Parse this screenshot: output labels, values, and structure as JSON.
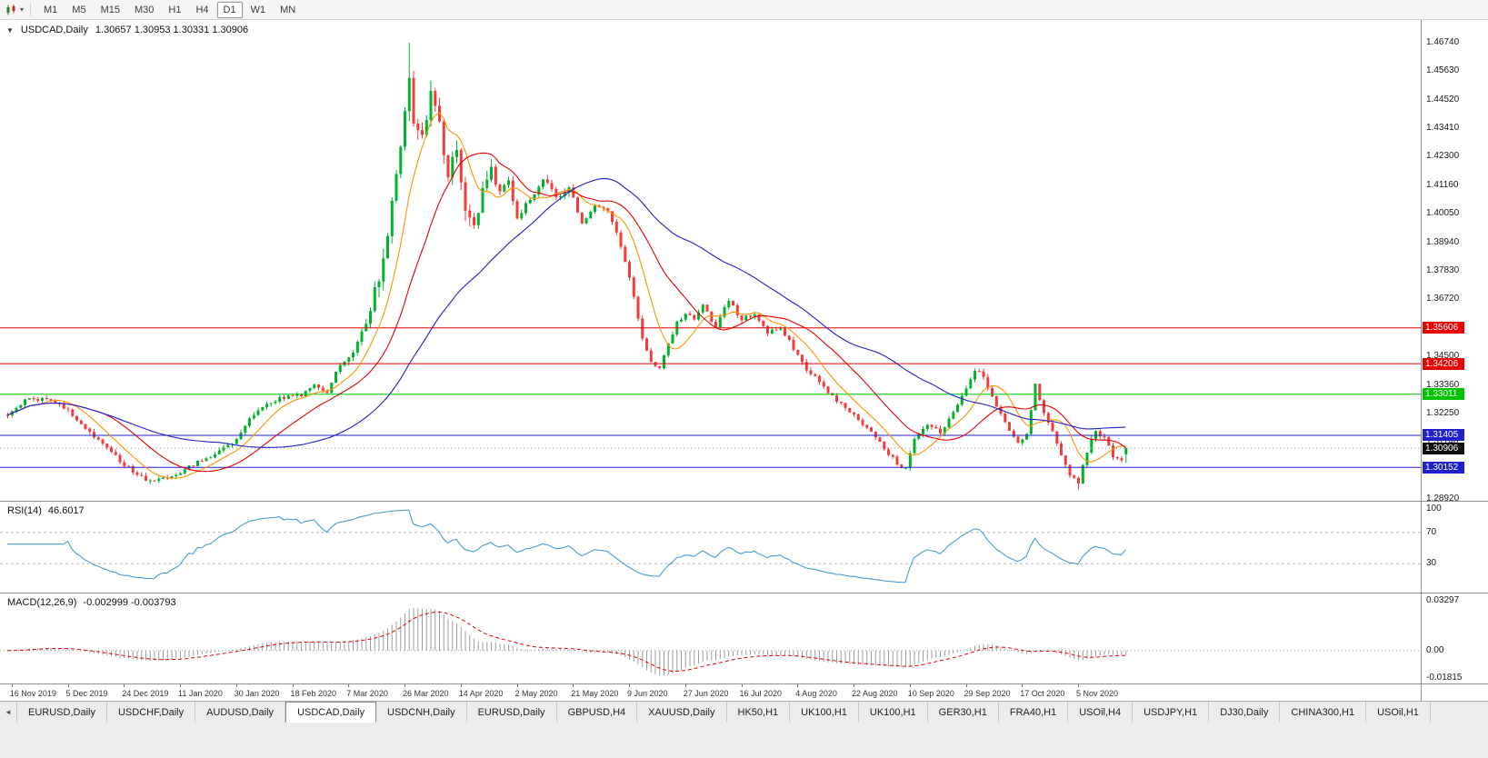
{
  "colors": {
    "bull": "#00b22c",
    "bear": "#f53a3a",
    "ma_fast": "#ff9400",
    "ma_mid": "#e60000",
    "ma_slow": "#2020cc",
    "rsi": "#4a9bd4",
    "macd_hist": "#9e9e9e",
    "macd_signal": "#e60000",
    "level_red": "#e60000",
    "level_green": "#00c400",
    "level_blue": "#2020cc",
    "tag_current": "#111111"
  },
  "toolbar": {
    "caret": "▾",
    "timeframes": [
      {
        "label": "M1",
        "active": false
      },
      {
        "label": "M5",
        "active": false
      },
      {
        "label": "M15",
        "active": false
      },
      {
        "label": "M30",
        "active": false
      },
      {
        "label": "H1",
        "active": false
      },
      {
        "label": "H4",
        "active": false
      },
      {
        "label": "D1",
        "active": true
      },
      {
        "label": "W1",
        "active": false
      },
      {
        "label": "MN",
        "active": false
      }
    ]
  },
  "chart": {
    "collapse_marker": "▼",
    "title": "USDCAD,Daily",
    "ohlc_text": "1.30657 1.30953 1.30331 1.30906",
    "y_axis_labels": [
      "1.46740",
      "1.45630",
      "1.44520",
      "1.43410",
      "1.42300",
      "1.41160",
      "1.40050",
      "1.38940",
      "1.37830",
      "1.36720",
      "1.35610",
      "1.34500",
      "1.33360",
      "1.32250",
      "1.31140",
      "1.30030",
      "1.28920"
    ],
    "price_tags": [
      {
        "price": 1.35606,
        "label": "1.35606",
        "color": "#e60000"
      },
      {
        "price": 1.34206,
        "label": "1.34206",
        "color": "#e60000"
      },
      {
        "price": 1.33011,
        "label": "1.33011",
        "color": "#00c400"
      },
      {
        "price": 1.31405,
        "label": "1.31405",
        "color": "#2020cc"
      },
      {
        "price": 1.30906,
        "label": "1.30906",
        "color": "#111111"
      },
      {
        "price": 1.30152,
        "label": "1.30152",
        "color": "#2020cc"
      }
    ],
    "x_axis_labels": [
      "16 Nov 2019",
      "5 Dec 2019",
      "24 Dec 2019",
      "11 Jan 2020",
      "30 Jan 2020",
      "18 Feb 2020",
      "7 Mar 2020",
      "26 Mar 2020",
      "14 Apr 2020",
      "2 May 2020",
      "21 May 2020",
      "9 Jun 2020",
      "27 Jun 2020",
      "16 Jul 2020",
      "4 Aug 2020",
      "22 Aug 2020",
      "10 Sep 2020",
      "29 Sep 2020",
      "17 Oct 2020",
      "5 Nov 2020"
    ]
  },
  "rsi": {
    "label": "RSI(14)",
    "value": "46.6017",
    "levels": [
      "100",
      "70",
      "30"
    ]
  },
  "macd": {
    "label": "MACD(12,26,9)",
    "values": "-0.002999 -0.003793",
    "axis": [
      "0.03297",
      "0.00",
      "-0.01815"
    ]
  },
  "tabbar": {
    "scroll_left": "◄",
    "tabs": [
      {
        "label": "EURUSD,Daily",
        "active": false
      },
      {
        "label": "USDCHF,Daily",
        "active": false
      },
      {
        "label": "AUDUSD,Daily",
        "active": false
      },
      {
        "label": "USDCAD,Daily",
        "active": true
      },
      {
        "label": "USDCNH,Daily",
        "active": false
      },
      {
        "label": "EURUSD,Daily",
        "active": false
      },
      {
        "label": "GBPUSD,H4",
        "active": false
      },
      {
        "label": "XAUUSD,Daily",
        "active": false
      },
      {
        "label": "HK50,H1",
        "active": false
      },
      {
        "label": "UK100,H1",
        "active": false
      },
      {
        "label": "UK100,H1",
        "active": false
      },
      {
        "label": "GER30,H1",
        "active": false
      },
      {
        "label": "FRA40,H1",
        "active": false
      },
      {
        "label": "USOil,H4",
        "active": false
      },
      {
        "label": "USDJPY,H1",
        "active": false
      },
      {
        "label": "DJ30,Daily",
        "active": false
      },
      {
        "label": "CHINA300,H1",
        "active": false
      },
      {
        "label": "USOil,H1",
        "active": false
      }
    ]
  },
  "chart_data": {
    "type": "candlestick",
    "symbol": "USDCAD",
    "period": "Daily",
    "bars_visible": 260,
    "x_label_start": 1,
    "x_label_step": 13,
    "price_range_visible": [
      1.2892,
      1.4674
    ],
    "current_bar": {
      "open": 1.30657,
      "high": 1.30953,
      "low": 1.30331,
      "close": 1.30906
    },
    "extremes": {
      "high": [
        93,
        1.4674
      ],
      "low_dec": [
        33,
        1.295
      ],
      "low_nov": [
        248,
        1.2928
      ]
    },
    "close_anchors": [
      [
        0,
        1.3225
      ],
      [
        5,
        1.3285
      ],
      [
        10,
        1.328
      ],
      [
        14,
        1.324
      ],
      [
        18,
        1.317
      ],
      [
        22,
        1.3105
      ],
      [
        26,
        1.304
      ],
      [
        30,
        1.2985
      ],
      [
        33,
        1.296
      ],
      [
        36,
        1.2975
      ],
      [
        40,
        1.2995
      ],
      [
        44,
        1.3035
      ],
      [
        48,
        1.307
      ],
      [
        52,
        1.311
      ],
      [
        56,
        1.32
      ],
      [
        60,
        1.3265
      ],
      [
        64,
        1.329
      ],
      [
        68,
        1.33
      ],
      [
        71,
        1.334
      ],
      [
        74,
        1.331
      ],
      [
        77,
        1.342
      ],
      [
        80,
        1.347
      ],
      [
        83,
        1.358
      ],
      [
        85,
        1.37
      ],
      [
        87,
        1.382
      ],
      [
        89,
        1.405
      ],
      [
        91,
        1.428
      ],
      [
        93,
        1.452
      ],
      [
        94,
        1.438
      ],
      [
        96,
        1.43
      ],
      [
        98,
        1.446
      ],
      [
        100,
        1.436
      ],
      [
        102,
        1.416
      ],
      [
        104,
        1.426
      ],
      [
        106,
        1.402
      ],
      [
        108,
        1.395
      ],
      [
        110,
        1.41
      ],
      [
        112,
        1.417
      ],
      [
        114,
        1.409
      ],
      [
        116,
        1.413
      ],
      [
        118,
        1.399
      ],
      [
        121,
        1.406
      ],
      [
        124,
        1.414
      ],
      [
        127,
        1.407
      ],
      [
        130,
        1.411
      ],
      [
        133,
        1.397
      ],
      [
        136,
        1.404
      ],
      [
        139,
        1.401
      ],
      [
        141,
        1.393
      ],
      [
        143,
        1.382
      ],
      [
        145,
        1.368
      ],
      [
        147,
        1.352
      ],
      [
        149,
        1.343
      ],
      [
        151,
        1.34
      ],
      [
        153,
        1.35
      ],
      [
        155,
        1.358
      ],
      [
        157,
        1.362
      ],
      [
        159,
        1.359
      ],
      [
        161,
        1.365
      ],
      [
        164,
        1.356
      ],
      [
        167,
        1.367
      ],
      [
        170,
        1.359
      ],
      [
        173,
        1.362
      ],
      [
        176,
        1.354
      ],
      [
        179,
        1.356
      ],
      [
        182,
        1.348
      ],
      [
        185,
        1.34
      ],
      [
        188,
        1.335
      ],
      [
        191,
        1.329
      ],
      [
        194,
        1.325
      ],
      [
        197,
        1.32
      ],
      [
        200,
        1.315
      ],
      [
        203,
        1.309
      ],
      [
        206,
        1.303
      ],
      [
        208,
        1.301
      ],
      [
        210,
        1.312
      ],
      [
        213,
        1.318
      ],
      [
        216,
        1.315
      ],
      [
        219,
        1.323
      ],
      [
        222,
        1.333
      ],
      [
        224,
        1.34
      ],
      [
        226,
        1.337
      ],
      [
        228,
        1.329
      ],
      [
        231,
        1.319
      ],
      [
        234,
        1.311
      ],
      [
        236,
        1.314
      ],
      [
        238,
        1.334
      ],
      [
        240,
        1.323
      ],
      [
        242,
        1.315
      ],
      [
        244,
        1.306
      ],
      [
        246,
        1.299
      ],
      [
        248,
        1.2955
      ],
      [
        250,
        1.308
      ],
      [
        252,
        1.316
      ],
      [
        254,
        1.313
      ],
      [
        256,
        1.306
      ],
      [
        258,
        1.3045
      ],
      [
        259,
        1.30906
      ]
    ],
    "moving_averages": [
      {
        "period": 9,
        "color": "#ff9400"
      },
      {
        "period": 21,
        "color": "#e60000"
      },
      {
        "period": 50,
        "color": "#2020cc"
      }
    ],
    "horizontal_lines": [
      {
        "price": 1.35606,
        "color": "#e60000"
      },
      {
        "price": 1.34206,
        "color": "#e60000"
      },
      {
        "price": 1.33011,
        "color": "#00c400"
      },
      {
        "price": 1.31405,
        "color": "#2020cc"
      },
      {
        "price": 1.30152,
        "color": "#2020cc"
      },
      {
        "price": 1.30906,
        "color": "#9a9a9a",
        "dash": "1,3"
      }
    ],
    "indicators": [
      {
        "name": "RSI",
        "period": 14,
        "last_value": 46.6017,
        "levels": [
          30,
          70
        ]
      },
      {
        "name": "MACD",
        "fast": 12,
        "slow": 26,
        "signal": 9,
        "last_values": [
          -0.002999,
          -0.003793
        ]
      }
    ]
  }
}
